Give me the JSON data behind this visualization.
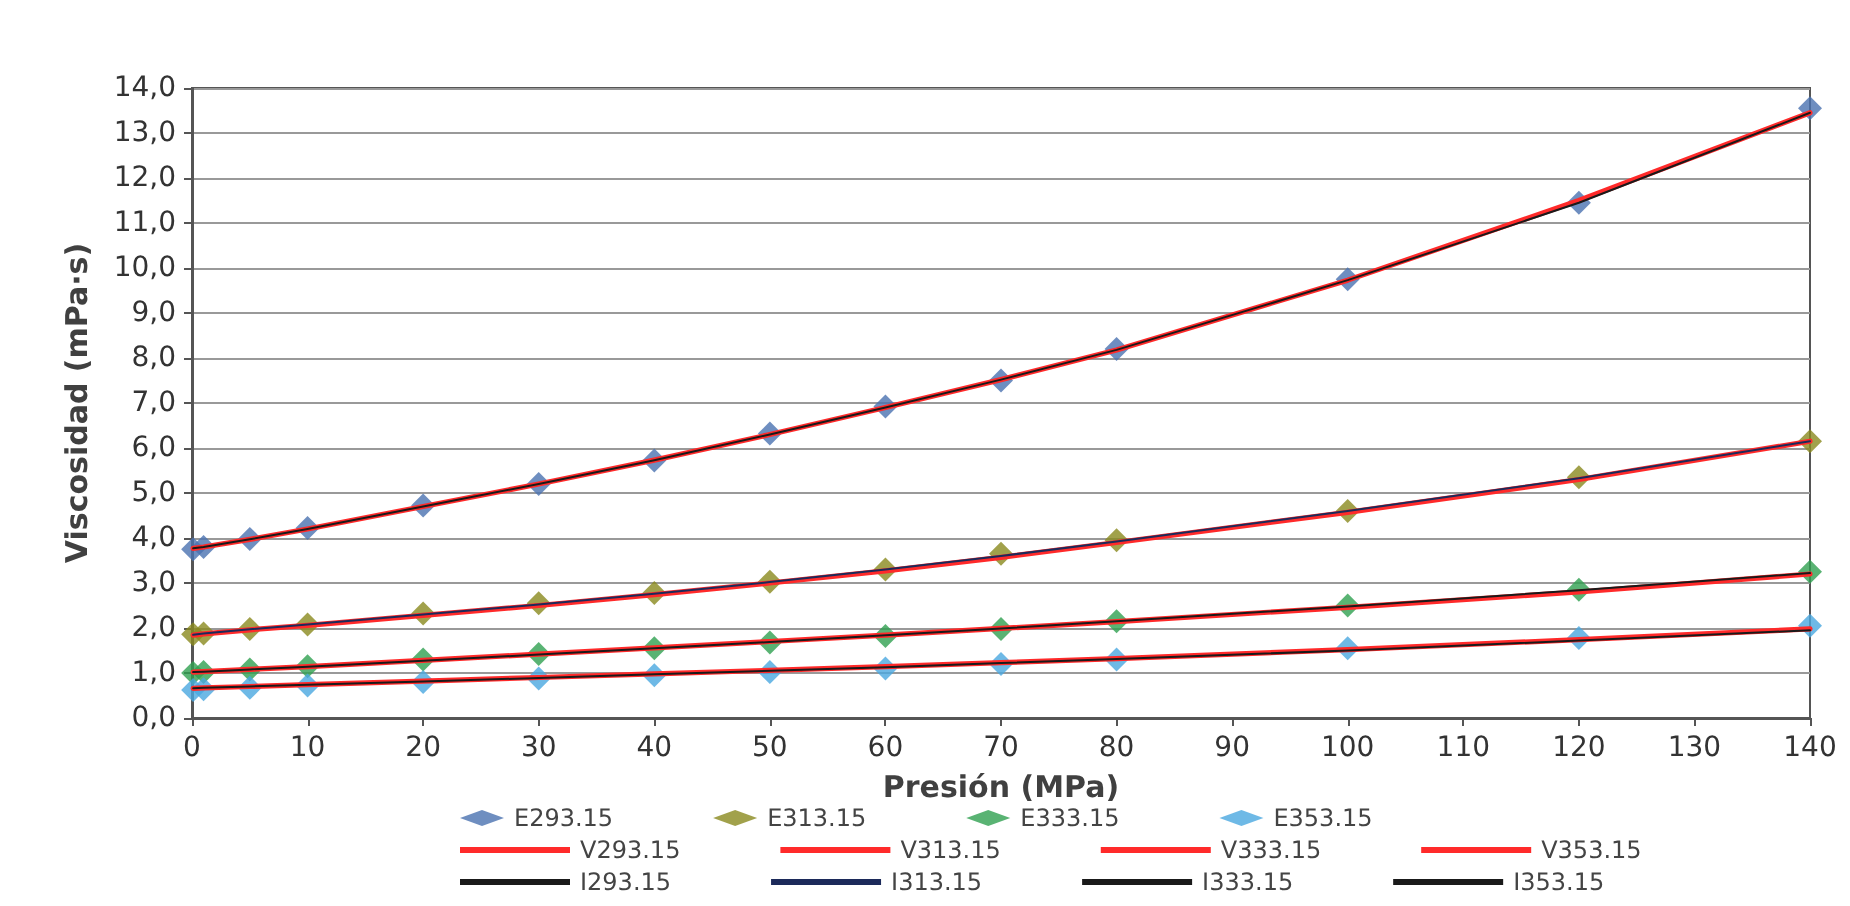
{
  "chart_data": {
    "type": "line",
    "xlabel": "Presión (MPa)",
    "ylabel": "Viscosidad (mPa·s)",
    "x": [
      0.1,
      1,
      5,
      10,
      20,
      30,
      40,
      50,
      60,
      70,
      80,
      100,
      120,
      140
    ],
    "xlim": [
      0,
      140
    ],
    "xticks": [
      0,
      10,
      20,
      30,
      40,
      50,
      60,
      70,
      80,
      90,
      100,
      110,
      120,
      130,
      140
    ],
    "ylim": [
      0,
      14
    ],
    "yticks": [
      {
        "value": 0,
        "label": "0,0"
      },
      {
        "value": 1,
        "label": "1,0"
      },
      {
        "value": 2,
        "label": "2,0"
      },
      {
        "value": 3,
        "label": "3,0"
      },
      {
        "value": 4,
        "label": "4,0"
      },
      {
        "value": 5,
        "label": "5,0"
      },
      {
        "value": 6,
        "label": "6,0"
      },
      {
        "value": 7,
        "label": "7,0"
      },
      {
        "value": 8,
        "label": "8,0"
      },
      {
        "value": 9,
        "label": "9,0"
      },
      {
        "value": 10,
        "label": "10,0"
      },
      {
        "value": 11,
        "label": "11,0"
      },
      {
        "value": 12,
        "label": "12,0"
      },
      {
        "value": 13,
        "label": "13,0"
      },
      {
        "value": 14,
        "label": "14,0"
      }
    ],
    "grid": "y",
    "legend": "bottom",
    "marker": "diamond",
    "line_style": "solid",
    "series": [
      {
        "name": "E293.15",
        "type": "scatter",
        "color": "#4a72b0",
        "values": [
          3.75,
          3.8,
          3.98,
          4.22,
          4.72,
          5.2,
          5.72,
          6.32,
          6.92,
          7.5,
          8.2,
          9.75,
          11.45,
          13.55
        ]
      },
      {
        "name": "E313.15",
        "type": "scatter",
        "color": "#8a8a1e",
        "values": [
          1.86,
          1.88,
          1.98,
          2.08,
          2.32,
          2.55,
          2.78,
          3.03,
          3.3,
          3.65,
          3.95,
          4.6,
          5.35,
          6.15
        ]
      },
      {
        "name": "E333.15",
        "type": "scatter",
        "color": "#2fa050",
        "values": [
          1.0,
          1.02,
          1.08,
          1.15,
          1.3,
          1.42,
          1.55,
          1.68,
          1.82,
          1.98,
          2.15,
          2.5,
          2.85,
          3.25
        ]
      },
      {
        "name": "E353.15",
        "type": "scatter",
        "color": "#4aa8e0",
        "values": [
          0.62,
          0.64,
          0.67,
          0.72,
          0.8,
          0.88,
          0.95,
          1.02,
          1.1,
          1.2,
          1.3,
          1.55,
          1.78,
          2.05
        ]
      },
      {
        "name": "V293.15",
        "marker": "none",
        "color": "#ff2a2a",
        "values": [
          3.77,
          3.8,
          3.97,
          4.2,
          4.7,
          5.2,
          5.73,
          6.3,
          6.9,
          7.52,
          8.18,
          9.73,
          11.5,
          13.45
        ]
      },
      {
        "name": "V313.15",
        "marker": "none",
        "color": "#ff2a2a",
        "values": [
          1.84,
          1.87,
          1.96,
          2.06,
          2.28,
          2.5,
          2.74,
          3.0,
          3.27,
          3.57,
          3.9,
          4.57,
          5.3,
          6.15
        ]
      },
      {
        "name": "V333.15",
        "marker": "none",
        "color": "#ff2a2a",
        "values": [
          1.02,
          1.03,
          1.08,
          1.14,
          1.28,
          1.42,
          1.56,
          1.7,
          1.84,
          1.99,
          2.14,
          2.46,
          2.8,
          3.2
        ]
      },
      {
        "name": "V353.15",
        "marker": "none",
        "color": "#ff2a2a",
        "values": [
          0.66,
          0.67,
          0.7,
          0.74,
          0.82,
          0.9,
          0.98,
          1.06,
          1.14,
          1.23,
          1.32,
          1.52,
          1.74,
          1.98
        ]
      },
      {
        "name": "I293.15",
        "marker": "none",
        "color": "#1a1a1a",
        "values": [
          3.77,
          3.8,
          3.97,
          4.2,
          4.7,
          5.2,
          5.73,
          6.3,
          6.9,
          7.52,
          8.18,
          9.73,
          11.45,
          13.45
        ]
      },
      {
        "name": "I313.15",
        "marker": "none",
        "color": "#1c2a5a",
        "values": [
          1.85,
          1.88,
          1.97,
          2.08,
          2.3,
          2.52,
          2.76,
          3.02,
          3.3,
          3.6,
          3.92,
          4.6,
          5.33,
          6.15
        ]
      },
      {
        "name": "I333.15",
        "marker": "none",
        "color": "#1a1a1a",
        "values": [
          1.02,
          1.03,
          1.08,
          1.14,
          1.27,
          1.41,
          1.55,
          1.69,
          1.84,
          1.99,
          2.15,
          2.48,
          2.84,
          3.22
        ]
      },
      {
        "name": "I353.15",
        "marker": "none",
        "color": "#1a1a1a",
        "values": [
          0.66,
          0.67,
          0.7,
          0.74,
          0.81,
          0.89,
          0.97,
          1.05,
          1.13,
          1.22,
          1.31,
          1.5,
          1.72,
          1.95
        ]
      }
    ]
  }
}
